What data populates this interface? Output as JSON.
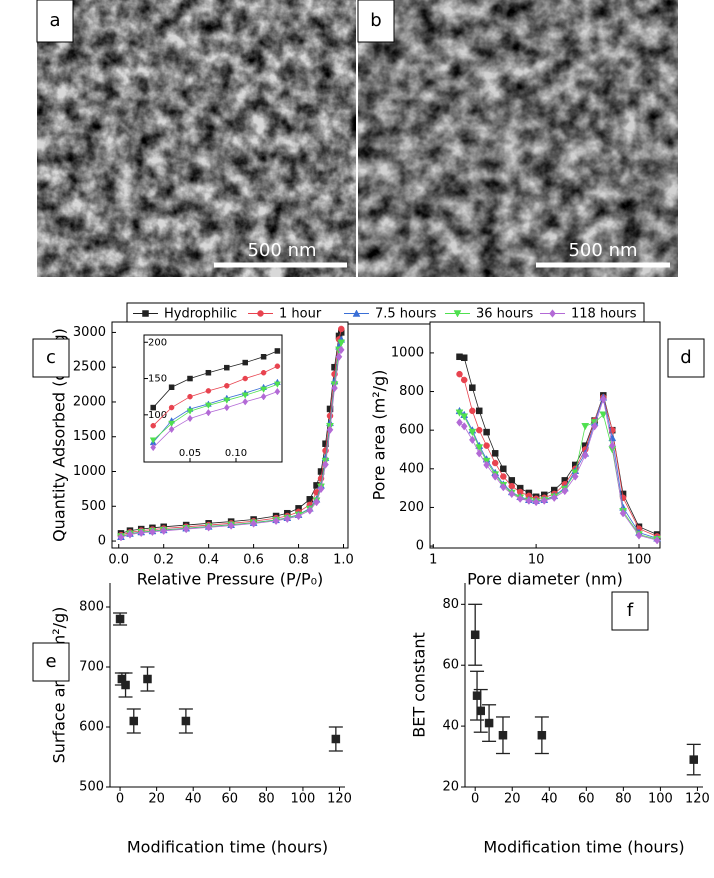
{
  "panels": {
    "a": {
      "label": "a",
      "scale_bar": "500 nm"
    },
    "b": {
      "label": "b",
      "scale_bar": "500 nm"
    }
  },
  "chart_data": [
    {
      "type": "line",
      "panel_label": "c",
      "xlabel": "Relative Pressure (P/P₀)",
      "ylabel": "Quantity Adsorbed (cm³/g)",
      "xlim": [
        -0.03,
        1.02
      ],
      "ylim": [
        -100,
        3150
      ],
      "xticks": [
        {
          "value": 0,
          "label": "0.0"
        },
        0.2,
        0.4,
        0.6,
        0.8,
        {
          "value": 1,
          "label": "1.0"
        }
      ],
      "yticks": [
        0,
        500,
        1000,
        1500,
        2000,
        2500,
        3000
      ],
      "x": [
        0.01,
        0.05,
        0.1,
        0.15,
        0.2,
        0.3,
        0.4,
        0.5,
        0.6,
        0.7,
        0.75,
        0.8,
        0.85,
        0.88,
        0.9,
        0.92,
        0.94,
        0.96,
        0.98,
        0.99
      ],
      "series": [
        {
          "name": "Hydrophilic",
          "color": "#222222",
          "marker": "square",
          "values": [
            110,
            150,
            172,
            190,
            205,
            230,
            255,
            280,
            310,
            360,
            400,
            470,
            600,
            800,
            1000,
            1400,
            1900,
            2500,
            2950,
            3000
          ]
        },
        {
          "name": "1 hour",
          "color": "#e8434f",
          "marker": "circle",
          "values": [
            85,
            125,
            150,
            165,
            180,
            205,
            230,
            255,
            285,
            330,
            360,
            420,
            520,
            700,
            900,
            1300,
            1800,
            2400,
            2900,
            3050
          ]
        },
        {
          "name": "7.5 hours",
          "color": "#3a6fd6",
          "marker": "triangle",
          "values": [
            62,
            108,
            130,
            145,
            160,
            185,
            210,
            235,
            265,
            305,
            335,
            380,
            470,
            600,
            800,
            1200,
            1700,
            2300,
            2800,
            2900
          ]
        },
        {
          "name": "36 hours",
          "color": "#4fe04f",
          "marker": "triangle-down",
          "values": [
            65,
            105,
            127,
            142,
            157,
            182,
            207,
            232,
            262,
            300,
            330,
            375,
            460,
            580,
            780,
            1150,
            1650,
            2250,
            2750,
            2850
          ]
        },
        {
          "name": "118 hours",
          "color": "#b36ad6",
          "marker": "diamond",
          "values": [
            55,
            95,
            118,
            132,
            147,
            172,
            197,
            222,
            252,
            290,
            320,
            360,
            440,
            560,
            750,
            1100,
            1600,
            2200,
            2650,
            2750
          ]
        }
      ]
    },
    {
      "type": "line",
      "xlim": [
        0,
        0.15
      ],
      "ylim": [
        35,
        210
      ],
      "xticks": [
        0.05,
        {
          "value": 0.1,
          "label": "0.10"
        }
      ],
      "yticks": [
        100,
        150,
        200
      ],
      "x": [
        0.01,
        0.03,
        0.05,
        0.07,
        0.09,
        0.11,
        0.13,
        0.145
      ],
      "series": [
        {
          "color": "#222222",
          "marker": "square",
          "values": [
            110,
            138,
            150,
            158,
            165,
            172,
            180,
            188
          ]
        },
        {
          "color": "#e8434f",
          "marker": "circle",
          "values": [
            85,
            110,
            125,
            133,
            140,
            150,
            158,
            167
          ]
        },
        {
          "color": "#3a6fd6",
          "marker": "triangle",
          "values": [
            62,
            92,
            108,
            115,
            123,
            130,
            138,
            145
          ]
        },
        {
          "color": "#4fe04f",
          "marker": "triangle-down",
          "values": [
            65,
            88,
            105,
            113,
            120,
            127,
            135,
            142
          ]
        },
        {
          "color": "#b36ad6",
          "marker": "diamond",
          "values": [
            55,
            80,
            95,
            103,
            110,
            118,
            125,
            132
          ]
        }
      ]
    },
    {
      "type": "line",
      "panel_label": "d",
      "xlabel": "Pore diameter (nm)",
      "ylabel": "Pore area (m²/g)",
      "xscale": "log",
      "xlim": [
        0.93,
        160
      ],
      "ylim": [
        -10,
        1160
      ],
      "xticks": [
        1,
        10,
        100
      ],
      "yticks": [
        0,
        200,
        400,
        600,
        800,
        1000
      ],
      "x": [
        1.8,
        2,
        2.4,
        2.8,
        3.3,
        4,
        4.8,
        5.8,
        7,
        8.5,
        10,
        12,
        15,
        19,
        24,
        30,
        37,
        45,
        55,
        70,
        100,
        150
      ],
      "series": [
        {
          "name": "Hydrophilic",
          "color": "#222222",
          "marker": "square",
          "values": [
            980,
            975,
            820,
            700,
            590,
            480,
            400,
            340,
            300,
            275,
            255,
            265,
            290,
            340,
            420,
            520,
            650,
            780,
            600,
            270,
            100,
            60
          ]
        },
        {
          "name": "1 hour",
          "color": "#e8434f",
          "marker": "circle",
          "values": [
            890,
            860,
            700,
            600,
            520,
            430,
            360,
            310,
            280,
            260,
            245,
            250,
            270,
            320,
            400,
            500,
            650,
            770,
            600,
            250,
            90,
            50
          ]
        },
        {
          "name": "7.5 hours",
          "color": "#3a6fd6",
          "marker": "triangle",
          "values": [
            700,
            680,
            600,
            520,
            450,
            380,
            320,
            280,
            255,
            240,
            235,
            240,
            260,
            300,
            390,
            480,
            640,
            770,
            560,
            200,
            70,
            40
          ]
        },
        {
          "name": "36 hours",
          "color": "#4fe04f",
          "marker": "triangle-down",
          "values": [
            690,
            670,
            590,
            510,
            440,
            370,
            315,
            275,
            250,
            235,
            230,
            238,
            255,
            295,
            380,
            620,
            640,
            680,
            500,
            180,
            60,
            35
          ]
        },
        {
          "name": "118 hours",
          "color": "#b36ad6",
          "marker": "diamond",
          "values": [
            640,
            620,
            550,
            480,
            420,
            360,
            305,
            270,
            245,
            235,
            228,
            235,
            250,
            285,
            360,
            470,
            620,
            760,
            520,
            170,
            55,
            30
          ]
        }
      ]
    },
    {
      "type": "errorbar",
      "panel_label": "e",
      "xlabel": "Modification time (hours)",
      "ylabel": "Surface area (m²/g)",
      "xlim": [
        -5.5,
        123
      ],
      "ylim": [
        500,
        840
      ],
      "xticks": [
        0,
        20,
        40,
        60,
        80,
        100,
        120
      ],
      "yticks": [
        500,
        600,
        700,
        800
      ],
      "color": "#222222",
      "x": [
        0,
        1,
        3,
        7.5,
        15,
        36,
        118
      ],
      "values": [
        780,
        680,
        670,
        610,
        680,
        610,
        580
      ],
      "errors": [
        10,
        10,
        20,
        20,
        20,
        20,
        20
      ]
    },
    {
      "type": "errorbar",
      "panel_label": "f",
      "xlabel": "Modification time (hours)",
      "ylabel": "BET constant",
      "xlim": [
        -5.5,
        123
      ],
      "ylim": [
        20,
        87
      ],
      "xticks": [
        0,
        20,
        40,
        60,
        80,
        100,
        120
      ],
      "yticks": [
        20,
        40,
        60,
        80
      ],
      "color": "#222222",
      "x": [
        0,
        1,
        3,
        7.5,
        15,
        36,
        118
      ],
      "values": [
        70,
        50,
        45,
        41,
        37,
        37,
        29
      ],
      "errors": [
        10,
        8,
        7,
        6,
        6,
        6,
        5
      ]
    }
  ]
}
